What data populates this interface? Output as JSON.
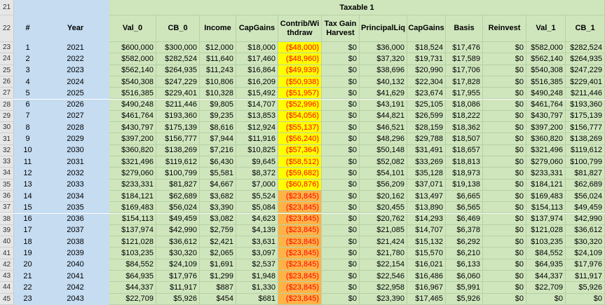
{
  "sheet": {
    "section_title": "Taxable 1",
    "title_row_number": "21",
    "header_row_number": "22",
    "columns": [
      "#",
      "Year",
      "Val_0",
      "CB_0",
      "Income",
      "CapGains",
      "Contrib/Wi thdraw",
      "Tax Gain Harvest",
      "PrincipalLiq",
      "CapGains",
      "Basis",
      "Reinvest",
      "Val_1",
      "CB_1"
    ],
    "rows": [
      {
        "rn": "23",
        "num": "1",
        "year": "2021",
        "val0": "$600,000",
        "cb0": "$300,000",
        "income": "$12,000",
        "capgains": "$18,000",
        "contrib": "($48,000)",
        "tgh": "$0",
        "pliq": "$36,000",
        "capgains2": "$18,524",
        "basis": "$17,476",
        "reinvest": "$0",
        "val1": "$582,000",
        "cb1": "$282,524",
        "fill": "yellow"
      },
      {
        "rn": "24",
        "num": "2",
        "year": "2022",
        "val0": "$582,000",
        "cb0": "$282,524",
        "income": "$11,640",
        "capgains": "$17,460",
        "contrib": "($48,960)",
        "tgh": "$0",
        "pliq": "$37,320",
        "capgains2": "$19,731",
        "basis": "$17,589",
        "reinvest": "$0",
        "val1": "$562,140",
        "cb1": "$264,935",
        "fill": "yellow"
      },
      {
        "rn": "25",
        "num": "3",
        "year": "2023",
        "val0": "$562,140",
        "cb0": "$264,935",
        "income": "$11,243",
        "capgains": "$16,864",
        "contrib": "($49,939)",
        "tgh": "$0",
        "pliq": "$38,696",
        "capgains2": "$20,990",
        "basis": "$17,706",
        "reinvest": "$0",
        "val1": "$540,308",
        "cb1": "$247,229",
        "fill": "yellow"
      },
      {
        "rn": "26",
        "num": "4",
        "year": "2024",
        "val0": "$540,308",
        "cb0": "$247,229",
        "income": "$10,806",
        "capgains": "$16,209",
        "contrib": "($50,938)",
        "tgh": "$0",
        "pliq": "$40,132",
        "capgains2": "$22,304",
        "basis": "$17,828",
        "reinvest": "$0",
        "val1": "$516,385",
        "cb1": "$229,401",
        "fill": "yellow"
      },
      {
        "rn": "27",
        "num": "5",
        "year": "2025",
        "val0": "$516,385",
        "cb0": "$229,401",
        "income": "$10,328",
        "capgains": "$15,492",
        "contrib": "($51,957)",
        "tgh": "$0",
        "pliq": "$41,629",
        "capgains2": "$23,674",
        "basis": "$17,955",
        "reinvest": "$0",
        "val1": "$490,248",
        "cb1": "$211,446",
        "fill": "yellow"
      },
      {
        "rn": "28",
        "num": "6",
        "year": "2026",
        "val0": "$490,248",
        "cb0": "$211,446",
        "income": "$9,805",
        "capgains": "$14,707",
        "contrib": "($52,996)",
        "tgh": "$0",
        "pliq": "$43,191",
        "capgains2": "$25,105",
        "basis": "$18,086",
        "reinvest": "$0",
        "val1": "$461,764",
        "cb1": "$193,360",
        "fill": "yellow"
      },
      {
        "rn": "29",
        "num": "7",
        "year": "2027",
        "val0": "$461,764",
        "cb0": "$193,360",
        "income": "$9,235",
        "capgains": "$13,853",
        "contrib": "($54,056)",
        "tgh": "$0",
        "pliq": "$44,821",
        "capgains2": "$26,599",
        "basis": "$18,222",
        "reinvest": "$0",
        "val1": "$430,797",
        "cb1": "$175,139",
        "fill": "yellow"
      },
      {
        "rn": "30",
        "num": "8",
        "year": "2028",
        "val0": "$430,797",
        "cb0": "$175,139",
        "income": "$8,616",
        "capgains": "$12,924",
        "contrib": "($55,137)",
        "tgh": "$0",
        "pliq": "$46,521",
        "capgains2": "$28,159",
        "basis": "$18,362",
        "reinvest": "$0",
        "val1": "$397,200",
        "cb1": "$156,777",
        "fill": "yellow"
      },
      {
        "rn": "31",
        "num": "9",
        "year": "2029",
        "val0": "$397,200",
        "cb0": "$156,777",
        "income": "$7,944",
        "capgains": "$11,916",
        "contrib": "($56,240)",
        "tgh": "$0",
        "pliq": "$48,296",
        "capgains2": "$29,788",
        "basis": "$18,507",
        "reinvest": "$0",
        "val1": "$360,820",
        "cb1": "$138,269",
        "fill": "yellow"
      },
      {
        "rn": "32",
        "num": "10",
        "year": "2030",
        "val0": "$360,820",
        "cb0": "$138,269",
        "income": "$7,216",
        "capgains": "$10,825",
        "contrib": "($57,364)",
        "tgh": "$0",
        "pliq": "$50,148",
        "capgains2": "$31,491",
        "basis": "$18,657",
        "reinvest": "$0",
        "val1": "$321,496",
        "cb1": "$119,612",
        "fill": "yellow"
      },
      {
        "rn": "33",
        "num": "11",
        "year": "2031",
        "val0": "$321,496",
        "cb0": "$119,612",
        "income": "$6,430",
        "capgains": "$9,645",
        "contrib": "($58,512)",
        "tgh": "$0",
        "pliq": "$52,082",
        "capgains2": "$33,269",
        "basis": "$18,813",
        "reinvest": "$0",
        "val1": "$279,060",
        "cb1": "$100,799",
        "fill": "yellow"
      },
      {
        "rn": "34",
        "num": "12",
        "year": "2032",
        "val0": "$279,060",
        "cb0": "$100,799",
        "income": "$5,581",
        "capgains": "$8,372",
        "contrib": "($59,682)",
        "tgh": "$0",
        "pliq": "$54,101",
        "capgains2": "$35,128",
        "basis": "$18,973",
        "reinvest": "$0",
        "val1": "$233,331",
        "cb1": "$81,827",
        "fill": "yellow"
      },
      {
        "rn": "35",
        "num": "13",
        "year": "2033",
        "val0": "$233,331",
        "cb0": "$81,827",
        "income": "$4,667",
        "capgains": "$7,000",
        "contrib": "($60,876)",
        "tgh": "$0",
        "pliq": "$56,209",
        "capgains2": "$37,071",
        "basis": "$19,138",
        "reinvest": "$0",
        "val1": "$184,121",
        "cb1": "$62,689",
        "fill": "yellow"
      },
      {
        "rn": "36",
        "num": "14",
        "year": "2034",
        "val0": "$184,121",
        "cb0": "$62,689",
        "income": "$3,682",
        "capgains": "$5,524",
        "contrib": "($23,845)",
        "tgh": "$0",
        "pliq": "$20,162",
        "capgains2": "$13,497",
        "basis": "$6,665",
        "reinvest": "$0",
        "val1": "$169,483",
        "cb1": "$56,024",
        "fill": "orange"
      },
      {
        "rn": "37",
        "num": "15",
        "year": "2035",
        "val0": "$169,483",
        "cb0": "$56,024",
        "income": "$3,390",
        "capgains": "$5,084",
        "contrib": "($23,845)",
        "tgh": "$0",
        "pliq": "$20,455",
        "capgains2": "$13,890",
        "basis": "$6,565",
        "reinvest": "$0",
        "val1": "$154,113",
        "cb1": "$49,459",
        "fill": "orange"
      },
      {
        "rn": "38",
        "num": "16",
        "year": "2036",
        "val0": "$154,113",
        "cb0": "$49,459",
        "income": "$3,082",
        "capgains": "$4,623",
        "contrib": "($23,845)",
        "tgh": "$0",
        "pliq": "$20,762",
        "capgains2": "$14,293",
        "basis": "$6,469",
        "reinvest": "$0",
        "val1": "$137,974",
        "cb1": "$42,990",
        "fill": "orange"
      },
      {
        "rn": "39",
        "num": "17",
        "year": "2037",
        "val0": "$137,974",
        "cb0": "$42,990",
        "income": "$2,759",
        "capgains": "$4,139",
        "contrib": "($23,845)",
        "tgh": "$0",
        "pliq": "$21,085",
        "capgains2": "$14,707",
        "basis": "$6,378",
        "reinvest": "$0",
        "val1": "$121,028",
        "cb1": "$36,612",
        "fill": "orange"
      },
      {
        "rn": "40",
        "num": "18",
        "year": "2038",
        "val0": "$121,028",
        "cb0": "$36,612",
        "income": "$2,421",
        "capgains": "$3,631",
        "contrib": "($23,845)",
        "tgh": "$0",
        "pliq": "$21,424",
        "capgains2": "$15,132",
        "basis": "$6,292",
        "reinvest": "$0",
        "val1": "$103,235",
        "cb1": "$30,320",
        "fill": "orange"
      },
      {
        "rn": "41",
        "num": "19",
        "year": "2039",
        "val0": "$103,235",
        "cb0": "$30,320",
        "income": "$2,065",
        "capgains": "$3,097",
        "contrib": "($23,845)",
        "tgh": "$0",
        "pliq": "$21,780",
        "capgains2": "$15,570",
        "basis": "$6,210",
        "reinvest": "$0",
        "val1": "$84,552",
        "cb1": "$24,109",
        "fill": "orange"
      },
      {
        "rn": "42",
        "num": "20",
        "year": "2040",
        "val0": "$84,552",
        "cb0": "$24,109",
        "income": "$1,691",
        "capgains": "$2,537",
        "contrib": "($23,845)",
        "tgh": "$0",
        "pliq": "$22,154",
        "capgains2": "$16,021",
        "basis": "$6,133",
        "reinvest": "$0",
        "val1": "$64,935",
        "cb1": "$17,976",
        "fill": "orange"
      },
      {
        "rn": "43",
        "num": "21",
        "year": "2041",
        "val0": "$64,935",
        "cb0": "$17,976",
        "income": "$1,299",
        "capgains": "$1,948",
        "contrib": "($23,845)",
        "tgh": "$0",
        "pliq": "$22,546",
        "capgains2": "$16,486",
        "basis": "$6,060",
        "reinvest": "$0",
        "val1": "$44,337",
        "cb1": "$11,917",
        "fill": "orange"
      },
      {
        "rn": "44",
        "num": "22",
        "year": "2042",
        "val0": "$44,337",
        "cb0": "$11,917",
        "income": "$887",
        "capgains": "$1,330",
        "contrib": "($23,845)",
        "tgh": "$0",
        "pliq": "$22,958",
        "capgains2": "$16,967",
        "basis": "$5,991",
        "reinvest": "$0",
        "val1": "$22,709",
        "cb1": "$5,926",
        "fill": "orange"
      },
      {
        "rn": "45",
        "num": "23",
        "year": "2043",
        "val0": "$22,709",
        "cb0": "$5,926",
        "income": "$454",
        "capgains": "$681",
        "contrib": "($23,845)",
        "tgh": "$0",
        "pliq": "$23,390",
        "capgains2": "$17,465",
        "basis": "$5,926",
        "reinvest": "$0",
        "val1": "$0",
        "cb1": "$0",
        "fill": "orange"
      }
    ]
  }
}
